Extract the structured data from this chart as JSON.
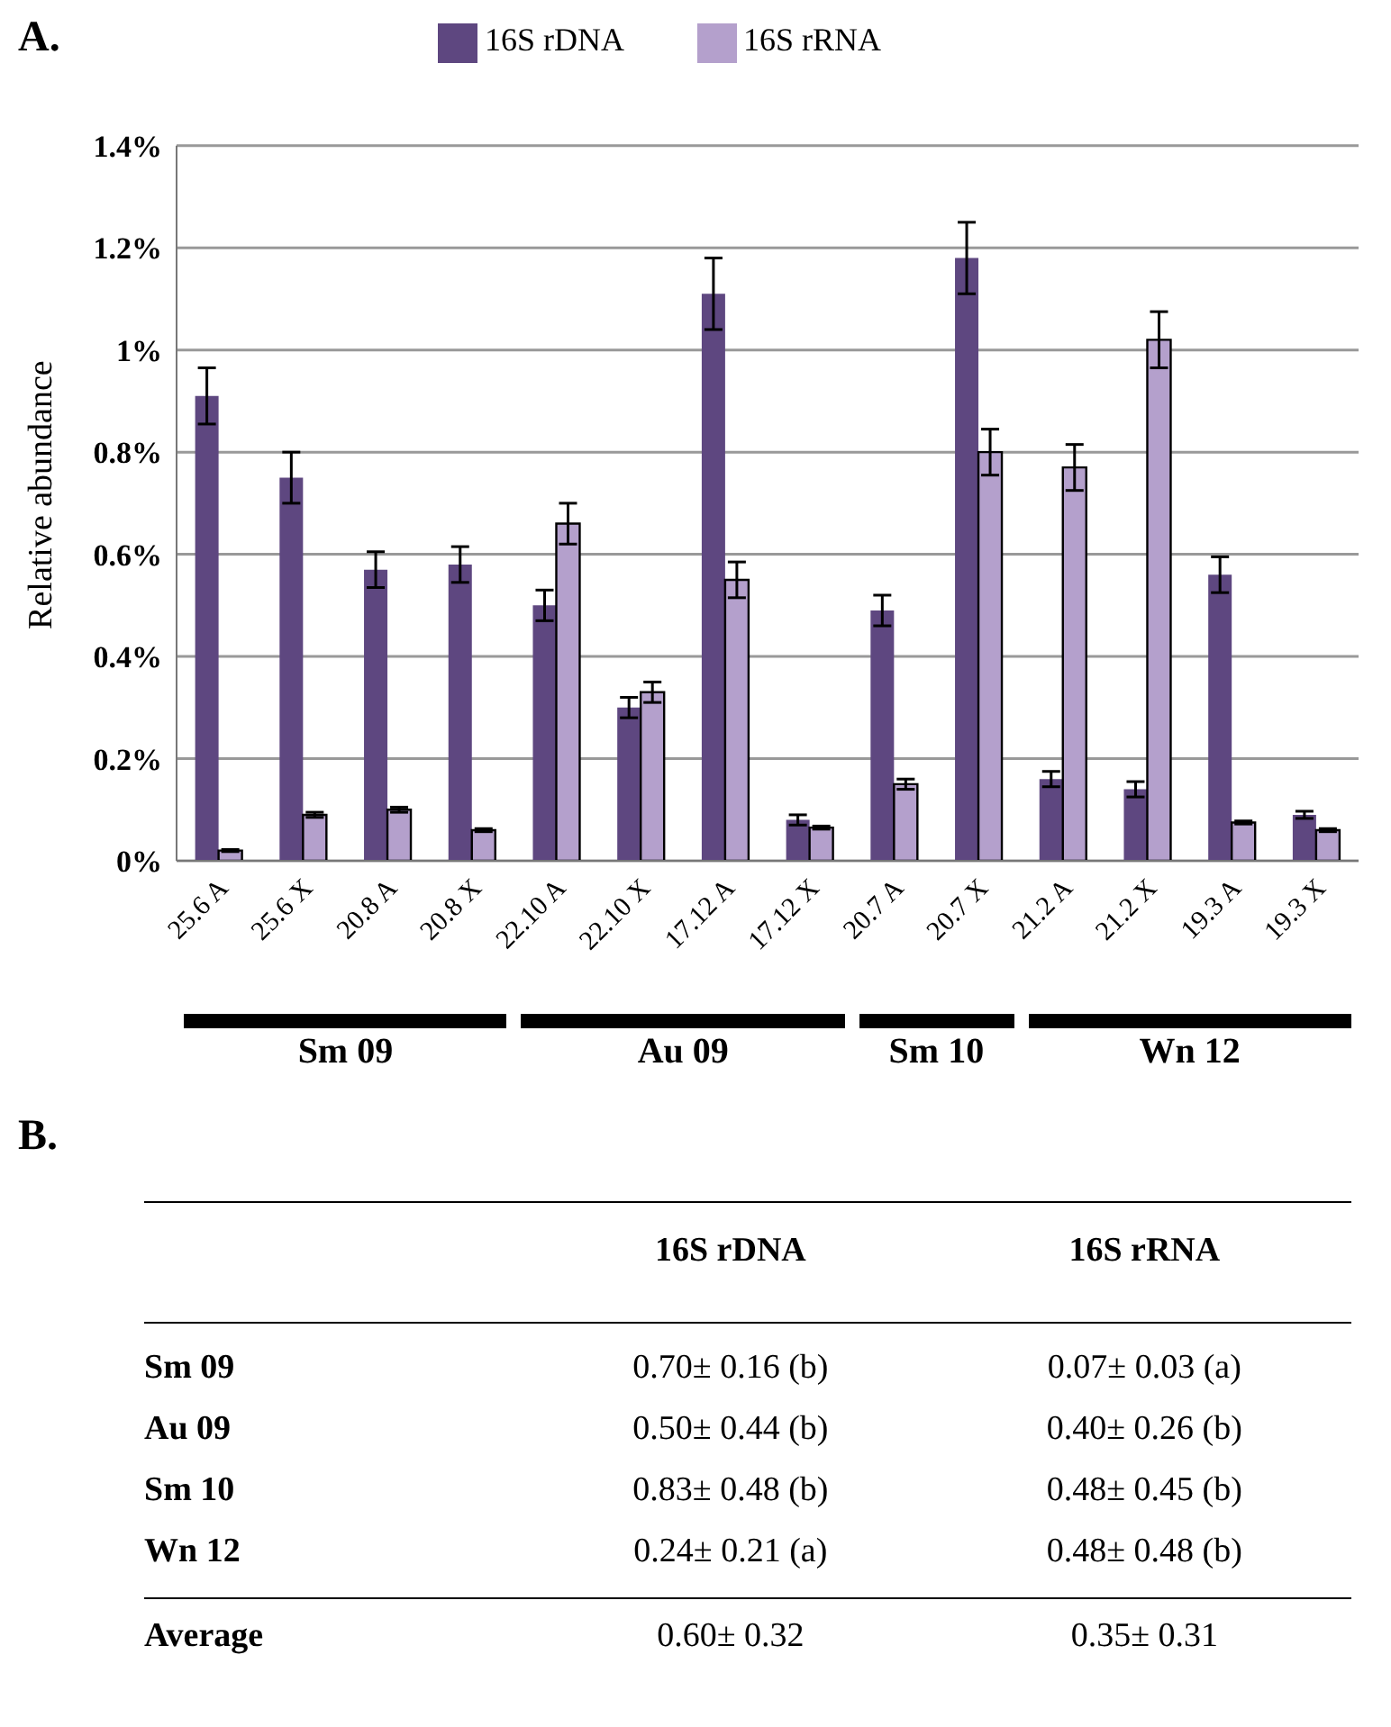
{
  "chart_data": [
    {
      "type": "bar",
      "title": "A.",
      "ylabel": "Relative abundance",
      "categories": [
        "25.6 A",
        "25.6 X",
        "20.8 A",
        "20.8 X",
        "22.10 A",
        "22.10 X",
        "17.12 A",
        "17.12 X",
        "20.7 A",
        "20.7 X",
        "21.2 A",
        "21.2 X",
        "19.3 A",
        "19.3 X"
      ],
      "series": [
        {
          "name": "16S rDNA",
          "color": "#5e4780",
          "values": [
            0.91,
            0.75,
            0.57,
            0.58,
            0.5,
            0.3,
            1.11,
            0.08,
            0.49,
            1.18,
            0.16,
            0.14,
            0.56,
            0.09
          ],
          "errors": [
            0.055,
            0.05,
            0.035,
            0.035,
            0.03,
            0.02,
            0.07,
            0.01,
            0.03,
            0.07,
            0.015,
            0.015,
            0.035,
            0.007
          ]
        },
        {
          "name": "16S rRNA",
          "color": "#b4a0cc",
          "values": [
            0.02,
            0.09,
            0.1,
            0.06,
            0.66,
            0.33,
            0.55,
            0.065,
            0.15,
            0.8,
            0.77,
            1.02,
            0.075,
            0.06
          ],
          "errors": [
            0.002,
            0.005,
            0.005,
            0.003,
            0.04,
            0.02,
            0.035,
            0.003,
            0.01,
            0.045,
            0.045,
            0.055,
            0.003,
            0.003
          ]
        }
      ],
      "ylim": [
        0,
        1.4
      ],
      "yticks": [
        {
          "value": 0,
          "label": "0%"
        },
        {
          "value": 0.2,
          "label": "0.2%"
        },
        {
          "value": 0.4,
          "label": "0.4%"
        },
        {
          "value": 0.6,
          "label": "0.6%"
        },
        {
          "value": 0.8,
          "label": "0.8%"
        },
        {
          "value": 1,
          "label": "1%"
        },
        {
          "value": 1.2,
          "label": "1.2%"
        },
        {
          "value": 1.4,
          "label": "1.4%"
        }
      ],
      "grid": "y",
      "legend": "top",
      "annotations": [
        "Sm 09",
        "Au 09",
        "Sm 10",
        "Wn 12"
      ]
    },
    {
      "type": "other",
      "title": "B.",
      "annotations": [
        "16S rDNA",
        "16S rRNA",
        "Sm 09",
        "0.70± 0.16 (b)",
        "0.07± 0.03 (a)",
        "Au 09",
        "0.50± 0.44 (b)",
        "0.40± 0.26 (b)",
        "Sm 10",
        "0.83± 0.48 (b)",
        "0.48± 0.45 (b)",
        "Wn 12",
        "0.24± 0.21 (a)",
        "0.48± 0.48 (b)",
        "Average",
        "0.60± 0.32",
        "0.35± 0.31"
      ]
    }
  ]
}
